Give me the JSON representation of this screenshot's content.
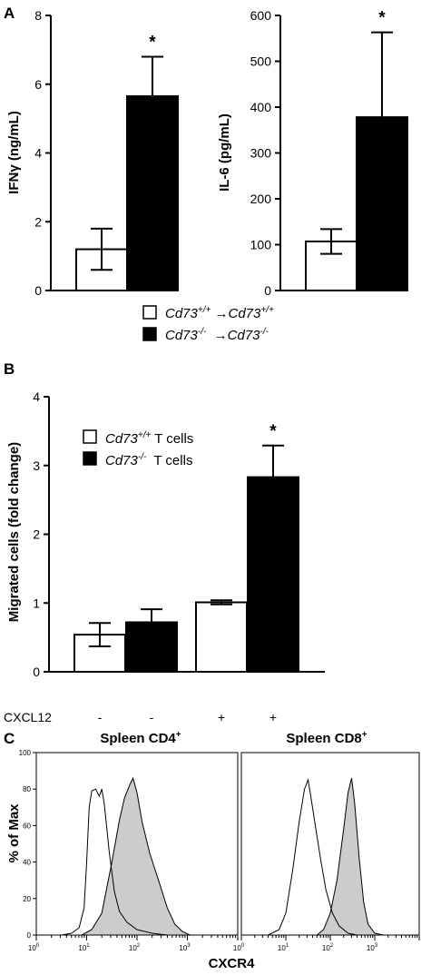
{
  "panels": {
    "a": "A",
    "b": "B",
    "c": "C"
  },
  "legend_a": [
    {
      "base": "Cd73",
      "sup": "+/+",
      "arrow": " →Cd73",
      "sup2": "+/+",
      "color": "#ffffff"
    },
    {
      "base": "Cd73",
      "sup": "-/-",
      "arrow": "  →Cd73",
      "sup2": "-/-",
      "color": "#000000"
    }
  ],
  "legend_b": [
    {
      "base": "Cd73",
      "sup": "+/+",
      "rest": " T cells",
      "color": "#ffffff"
    },
    {
      "base": "Cd73",
      "sup": "-/-",
      "rest": "  T cells",
      "color": "#000000"
    }
  ],
  "cxcl12": {
    "label": "CXCL12",
    "values": [
      "-",
      "-",
      "+",
      "+"
    ]
  },
  "chart_data": [
    {
      "type": "bar",
      "ylabel": "IFNγ (ng/mL)",
      "ylim": [
        0,
        8
      ],
      "yticks": [
        "0",
        "2",
        "4",
        "6",
        "8"
      ],
      "values": [
        1.2,
        5.65
      ],
      "errors": [
        0.6,
        1.15
      ],
      "colors": [
        "#ffffff",
        "#000000"
      ],
      "annotations": [
        "",
        "*"
      ]
    },
    {
      "type": "bar",
      "ylabel": "IL-6 (pg/mL)",
      "ylim": [
        0,
        600
      ],
      "yticks": [
        "0",
        "100",
        "200",
        "300",
        "400",
        "500",
        "600"
      ],
      "values": [
        107,
        378
      ],
      "errors": [
        27,
        185
      ],
      "colors": [
        "#ffffff",
        "#000000"
      ],
      "annotations": [
        "",
        "*"
      ]
    },
    {
      "type": "bar",
      "ylabel": "Migrated cells (fold change)",
      "ylim": [
        0,
        4
      ],
      "yticks": [
        "0",
        "1",
        "2",
        "3",
        "4"
      ],
      "values": [
        0.54,
        0.72,
        1.01,
        2.83
      ],
      "errors": [
        0.17,
        0.19,
        0.03,
        0.46
      ],
      "colors": [
        "#ffffff",
        "#000000",
        "#ffffff",
        "#000000"
      ],
      "annotations": [
        "",
        "",
        "",
        "*"
      ]
    },
    {
      "type": "area",
      "title_base": "Spleen CD4",
      "title_sup": "+",
      "ylabel": "% of Max",
      "yticks": [
        "0",
        "20",
        "40",
        "60",
        "80",
        "100"
      ],
      "ylim": [
        0,
        100
      ],
      "xlim_log10": [
        0,
        4
      ],
      "xticks": [
        "0",
        "1",
        "2",
        "3"
      ],
      "open_series": [
        [
          0.5,
          0
        ],
        [
          0.7,
          1
        ],
        [
          0.85,
          4
        ],
        [
          0.95,
          15
        ],
        [
          1.0,
          40
        ],
        [
          1.05,
          70
        ],
        [
          1.1,
          79
        ],
        [
          1.18,
          80
        ],
        [
          1.25,
          76
        ],
        [
          1.3,
          80
        ],
        [
          1.35,
          72
        ],
        [
          1.45,
          45
        ],
        [
          1.55,
          24
        ],
        [
          1.65,
          13
        ],
        [
          1.8,
          7
        ],
        [
          2.0,
          3
        ],
        [
          2.3,
          1
        ],
        [
          2.6,
          0
        ]
      ],
      "filled_series": [
        [
          0.9,
          0
        ],
        [
          1.1,
          3
        ],
        [
          1.3,
          12
        ],
        [
          1.5,
          40
        ],
        [
          1.65,
          63
        ],
        [
          1.75,
          75
        ],
        [
          1.85,
          82
        ],
        [
          1.92,
          86
        ],
        [
          2.0,
          78
        ],
        [
          2.1,
          62
        ],
        [
          2.25,
          45
        ],
        [
          2.45,
          28
        ],
        [
          2.6,
          15
        ],
        [
          2.75,
          6
        ],
        [
          2.9,
          2
        ],
        [
          3.05,
          0
        ]
      ],
      "filled_color": "#cccccc"
    },
    {
      "type": "area",
      "title_base": "Spleen CD8",
      "title_sup": "+",
      "ylabel": "",
      "yticks": [],
      "ylim": [
        0,
        100
      ],
      "xlim_log10": [
        0,
        4
      ],
      "xticks": [
        "0",
        "1",
        "2",
        "3"
      ],
      "open_series": [
        [
          0.6,
          0
        ],
        [
          0.85,
          3
        ],
        [
          1.0,
          12
        ],
        [
          1.15,
          35
        ],
        [
          1.3,
          62
        ],
        [
          1.42,
          80
        ],
        [
          1.5,
          85
        ],
        [
          1.55,
          78
        ],
        [
          1.65,
          62
        ],
        [
          1.78,
          42
        ],
        [
          1.9,
          25
        ],
        [
          2.05,
          12
        ],
        [
          2.2,
          5
        ],
        [
          2.4,
          1
        ],
        [
          2.6,
          0
        ]
      ],
      "filled_series": [
        [
          1.7,
          0
        ],
        [
          1.85,
          3
        ],
        [
          2.0,
          12
        ],
        [
          2.15,
          30
        ],
        [
          2.3,
          58
        ],
        [
          2.4,
          78
        ],
        [
          2.48,
          86
        ],
        [
          2.55,
          72
        ],
        [
          2.65,
          42
        ],
        [
          2.75,
          18
        ],
        [
          2.85,
          6
        ],
        [
          3.0,
          1
        ],
        [
          3.2,
          0
        ]
      ],
      "filled_color": "#cccccc"
    }
  ],
  "xlabel_c": "CXCR4"
}
